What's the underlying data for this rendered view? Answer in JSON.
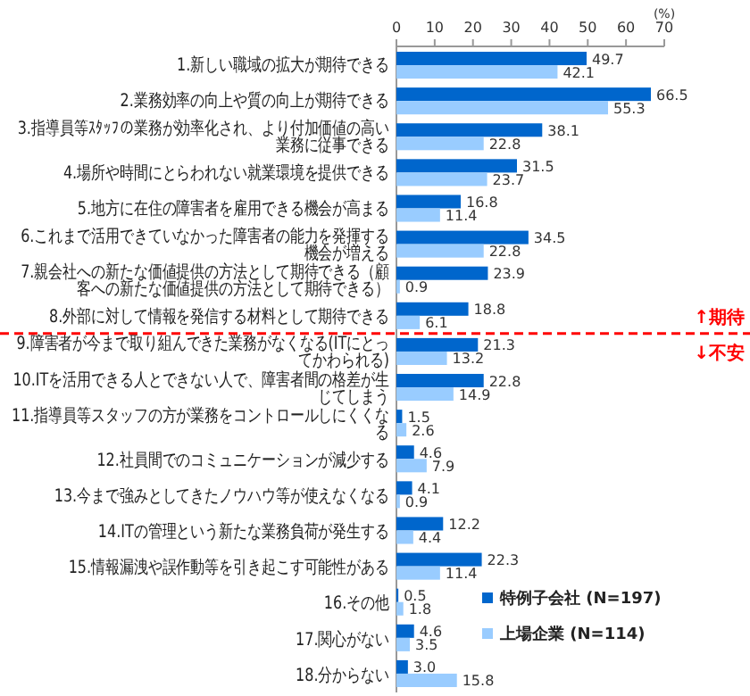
{
  "chart_data": {
    "type": "bar",
    "orientation": "horizontal",
    "xlabel": "(%)",
    "categories": [
      "1.新しい職域の拡大が期待できる",
      "2.業務効率の向上や質の向上が期待できる",
      "3.指導員等ｽﾀｯﾌの業務が効率化され、より付加価値の高い業務に従事できる",
      "4.場所や時間にとらわれない就業環境を提供できる",
      "5.地方に在住の障害者を雇用できる機会が高まる",
      "6.これまで活用できていなかった障害者の能力を発揮する機会が増える",
      "7.親会社への新たな価値提供の方法として期待できる（顧客への新たな価値提供の方法として期待できる）",
      "8.外部に対して情報を発信する材料として期待できる",
      "9.障害者が今まで取り組んできた業務がなくなる(ITにとってかわられる)",
      "10.ITを活用できる人とできない人で、障害者間の格差が生じてしまう",
      "11.指導員等スタッフの方が業務をコントロールしにくくなる",
      "12.社員間でのコミュニケーションが減少する",
      "13.今まで強みとしてきたノウハウ等が使えなくなる",
      "14.ITの管理という新たな業務負荷が発生する",
      "15.情報漏洩や誤作動等を引き起こす可能性がある",
      "16.その他",
      "17.関心がない",
      "18.分からない"
    ],
    "series": [
      {
        "name": "特例子会社 (N=197)",
        "color": "#0066cc",
        "values": [
          49.7,
          66.5,
          38.1,
          31.5,
          16.8,
          34.5,
          23.9,
          18.8,
          21.3,
          22.8,
          1.5,
          4.6,
          4.1,
          12.2,
          22.3,
          0.5,
          4.6,
          3.0
        ],
        "value_labels": [
          "49.7",
          "66.5",
          "38.1",
          "31.5",
          "16.8",
          "34.5",
          "23.9",
          "18.8",
          "21.3",
          "22.8",
          "1.5",
          "4.6",
          "4.1",
          "12.2",
          "22.3",
          "0.5",
          "4.6",
          "3.0"
        ]
      },
      {
        "name": "上場企業 (N=114)",
        "color": "#99ccff",
        "values": [
          42.1,
          55.3,
          22.8,
          23.7,
          11.4,
          22.8,
          0.9,
          6.1,
          13.2,
          14.9,
          2.6,
          7.9,
          0.9,
          4.4,
          11.4,
          1.8,
          3.5,
          15.8
        ],
        "value_labels": [
          "42.1",
          "55.3",
          "22.8",
          "23.7",
          "11.4",
          "22.8",
          "0.9",
          "6.1",
          "13.2",
          "14.9",
          "2.6",
          "7.9",
          "0.9",
          "4.4",
          "11.4",
          "1.8",
          "3.5",
          "15.8"
        ]
      }
    ],
    "xlim": [
      0,
      70
    ],
    "xticks": [
      0,
      10,
      20,
      30,
      40,
      50,
      60,
      70
    ],
    "grid": false,
    "legend": "bottom right",
    "ref_lines": [
      {
        "axis": "y",
        "value": "8.外部に対して情報を発信する材料として期待できる",
        "label": "↑期待",
        "color": "#ff0000",
        "line_style": "dashed"
      }
    ],
    "annotations": [
      "↓不安"
    ]
  }
}
